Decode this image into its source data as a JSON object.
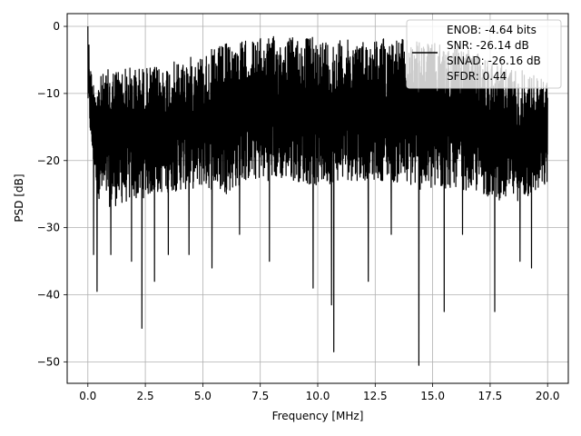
{
  "chart_data": {
    "type": "line",
    "xlabel": "Frequency [MHz]",
    "ylabel": "PSD [dB]",
    "xlim": [
      -0.9,
      20.9
    ],
    "ylim": [
      -53.2,
      1.9
    ],
    "xticks": [
      0.0,
      2.5,
      5.0,
      7.5,
      10.0,
      12.5,
      15.0,
      17.5,
      20.0
    ],
    "xtick_labels": [
      "0.0",
      "2.5",
      "5.0",
      "7.5",
      "10.0",
      "12.5",
      "15.0",
      "17.5",
      "20.0"
    ],
    "yticks": [
      0,
      -10,
      -20,
      -30,
      -40,
      -50
    ],
    "ytick_labels": [
      "0",
      "−10",
      "−20",
      "−30",
      "−40",
      "−50"
    ],
    "grid": true,
    "legend_position": "top-right",
    "series": [
      {
        "name": "",
        "color": "#000000",
        "x_range": [
          0.0,
          20.0
        ],
        "envelope_upper": [
          [
            0.0,
            0.0
          ],
          [
            0.05,
            -2.0
          ],
          [
            0.1,
            -5.0
          ],
          [
            0.2,
            -8.0
          ],
          [
            0.5,
            -7.5
          ],
          [
            1.0,
            -6.0
          ],
          [
            2.0,
            -6.0
          ],
          [
            3.0,
            -6.0
          ],
          [
            4.0,
            -5.0
          ],
          [
            5.0,
            -4.0
          ],
          [
            6.0,
            -2.5
          ],
          [
            7.0,
            -2.0
          ],
          [
            8.0,
            -1.5
          ],
          [
            9.0,
            -1.5
          ],
          [
            10.0,
            -1.5
          ],
          [
            11.0,
            -2.0
          ],
          [
            12.0,
            -2.0
          ],
          [
            13.0,
            -1.5
          ],
          [
            14.0,
            -2.0
          ],
          [
            15.0,
            -2.5
          ],
          [
            16.0,
            -3.0
          ],
          [
            17.0,
            -4.0
          ],
          [
            18.0,
            -5.5
          ],
          [
            19.0,
            -6.5
          ],
          [
            20.0,
            -8.0
          ]
        ],
        "envelope_lower": [
          [
            0.0,
            -12.0
          ],
          [
            0.2,
            -20.0
          ],
          [
            0.5,
            -26.0
          ],
          [
            1.0,
            -27.0
          ],
          [
            2.0,
            -26.0
          ],
          [
            3.0,
            -25.0
          ],
          [
            4.0,
            -24.5
          ],
          [
            5.0,
            -24.0
          ],
          [
            6.0,
            -25.0
          ],
          [
            7.0,
            -23.0
          ],
          [
            8.0,
            -23.0
          ],
          [
            9.0,
            -23.0
          ],
          [
            10.0,
            -24.0
          ],
          [
            11.0,
            -23.0
          ],
          [
            12.0,
            -23.0
          ],
          [
            13.0,
            -23.0
          ],
          [
            14.0,
            -24.0
          ],
          [
            15.0,
            -25.0
          ],
          [
            16.0,
            -24.0
          ],
          [
            17.0,
            -25.0
          ],
          [
            18.0,
            -26.0
          ],
          [
            19.0,
            -26.0
          ],
          [
            20.0,
            -24.0
          ]
        ],
        "dips": [
          [
            0.25,
            -34.0
          ],
          [
            0.4,
            -39.5
          ],
          [
            1.0,
            -34.0
          ],
          [
            1.9,
            -35.0
          ],
          [
            2.35,
            -45.0
          ],
          [
            2.9,
            -38.0
          ],
          [
            3.5,
            -34.0
          ],
          [
            4.4,
            -34.0
          ],
          [
            5.4,
            -36.0
          ],
          [
            6.6,
            -31.0
          ],
          [
            7.9,
            -35.0
          ],
          [
            9.8,
            -39.0
          ],
          [
            10.6,
            -41.5
          ],
          [
            10.7,
            -48.5
          ],
          [
            12.2,
            -38.0
          ],
          [
            13.2,
            -31.0
          ],
          [
            14.4,
            -50.5
          ],
          [
            15.5,
            -42.5
          ],
          [
            16.3,
            -31.0
          ],
          [
            17.7,
            -42.5
          ],
          [
            18.8,
            -35.0
          ],
          [
            19.3,
            -36.0
          ]
        ]
      }
    ]
  },
  "legend": {
    "lines": [
      "ENOB: -4.64 bits",
      "SNR: -26.14 dB",
      "SINAD: -26.16 dB",
      "SFDR: 0.44"
    ]
  }
}
